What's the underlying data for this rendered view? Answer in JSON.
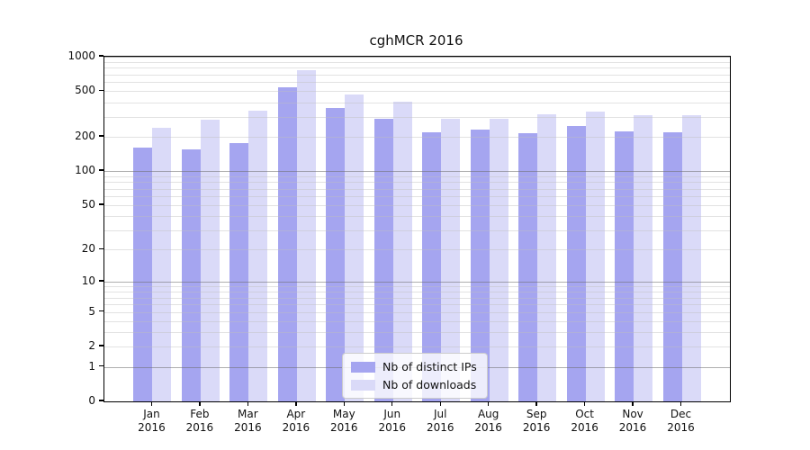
{
  "chart_data": {
    "type": "bar",
    "title": "cghMCR 2016",
    "categories": [
      "Jan",
      "Feb",
      "Mar",
      "Apr",
      "May",
      "Jun",
      "Jul",
      "Aug",
      "Sep",
      "Oct",
      "Nov",
      "Dec"
    ],
    "category_year": "2016",
    "series": [
      {
        "name": "Nb of distinct IPs",
        "color": "#a5a5f0",
        "values": [
          161,
          156,
          177,
          540,
          355,
          288,
          218,
          231,
          217,
          248,
          222,
          218
        ]
      },
      {
        "name": "Nb of downloads",
        "color": "#dadaf8",
        "values": [
          240,
          283,
          340,
          765,
          465,
          405,
          287,
          287,
          314,
          331,
          308,
          308
        ]
      }
    ],
    "xlabel": "",
    "ylabel": "",
    "y_axis": {
      "scale": "log1p",
      "ticks": [
        0,
        1,
        2,
        5,
        10,
        20,
        50,
        100,
        200,
        500,
        1000
      ],
      "major_gridlines": [
        1,
        10,
        100,
        1000
      ],
      "ylim": [
        0,
        1000
      ]
    },
    "legend": {
      "position": "bottom-center"
    },
    "grid": true,
    "colors": {
      "spine": "#000000",
      "major_grid": "#6e6e6e",
      "minor_grid": "#bebebe",
      "background": "#ffffff"
    }
  }
}
